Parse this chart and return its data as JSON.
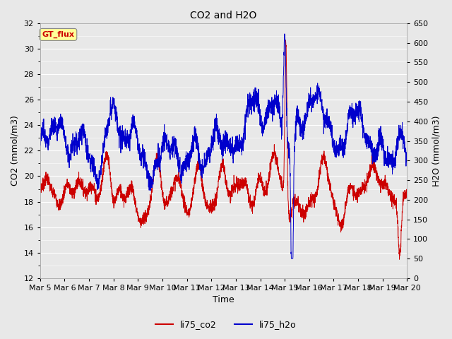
{
  "title": "CO2 and H2O",
  "xlabel": "Time",
  "ylabel_left": "CO2 (mmol/m3)",
  "ylabel_right": "H2O (mmol/m3)",
  "ylim_left": [
    12,
    32
  ],
  "ylim_right": [
    0,
    650
  ],
  "yticks_left": [
    12,
    14,
    16,
    18,
    20,
    22,
    24,
    26,
    28,
    30,
    32
  ],
  "yticks_right": [
    0,
    50,
    100,
    150,
    200,
    250,
    300,
    350,
    400,
    450,
    500,
    550,
    600,
    650
  ],
  "color_co2": "#cc0000",
  "color_h2o": "#0000cc",
  "annotation_text": "GT_flux",
  "annotation_color": "#cc0000",
  "annotation_bg": "#ffff99",
  "background_color": "#e8e8e8",
  "grid_color": "#ffffff",
  "linewidth": 0.7,
  "num_points": 3000,
  "figwidth": 6.4,
  "figheight": 4.8,
  "dpi": 100
}
